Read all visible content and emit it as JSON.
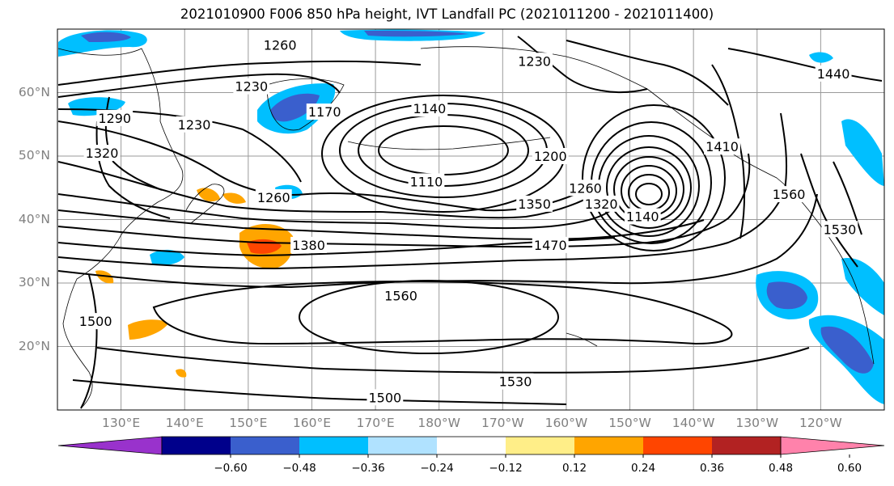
{
  "title": "2021010900 F006 850 hPa height, IVT Landfall PC (2021011200 - 2021011400)",
  "map": {
    "projection": "equirectangular",
    "lon_range_east": [
      120,
      250
    ],
    "lat_range": [
      10,
      70
    ],
    "grid": true,
    "lat_ticks": [
      {
        "value": 20,
        "label": "20°N"
      },
      {
        "value": 30,
        "label": "30°N"
      },
      {
        "value": 40,
        "label": "40°N"
      },
      {
        "value": 50,
        "label": "50°N"
      },
      {
        "value": 60,
        "label": "60°N"
      }
    ],
    "lon_ticks": [
      {
        "value": 130,
        "label": "130°E"
      },
      {
        "value": 140,
        "label": "140°E"
      },
      {
        "value": 150,
        "label": "150°E"
      },
      {
        "value": 160,
        "label": "160°E"
      },
      {
        "value": 170,
        "label": "170°E"
      },
      {
        "value": 180,
        "label": "180°W"
      },
      {
        "value": 190,
        "label": "170°W"
      },
      {
        "value": 200,
        "label": "160°W"
      },
      {
        "value": 210,
        "label": "150°W"
      },
      {
        "value": 220,
        "label": "140°W"
      },
      {
        "value": 230,
        "label": "130°W"
      },
      {
        "value": 240,
        "label": "120°W"
      }
    ]
  },
  "contour_labels": [
    {
      "text": "1260",
      "lon": 155,
      "lat": 67.5
    },
    {
      "text": "1230",
      "lon": 150.5,
      "lat": 61
    },
    {
      "text": "1290",
      "lon": 129,
      "lat": 56
    },
    {
      "text": "1320",
      "lon": 127,
      "lat": 50.5
    },
    {
      "text": "1230",
      "lon": 141.5,
      "lat": 55
    },
    {
      "text": "1170",
      "lon": 162,
      "lat": 57
    },
    {
      "text": "1140",
      "lon": 178.5,
      "lat": 57.5
    },
    {
      "text": "1230",
      "lon": 195,
      "lat": 65
    },
    {
      "text": "1200",
      "lon": 197.5,
      "lat": 50
    },
    {
      "text": "1110",
      "lon": 178,
      "lat": 46
    },
    {
      "text": "1260",
      "lon": 203,
      "lat": 45
    },
    {
      "text": "1260",
      "lon": 154,
      "lat": 43.5
    },
    {
      "text": "1350",
      "lon": 195,
      "lat": 42.5
    },
    {
      "text": "1320",
      "lon": 205.5,
      "lat": 42.5
    },
    {
      "text": "1140",
      "lon": 212,
      "lat": 40.5
    },
    {
      "text": "1410",
      "lon": 224.5,
      "lat": 51.5
    },
    {
      "text": "1440",
      "lon": 242,
      "lat": 63
    },
    {
      "text": "1560",
      "lon": 235,
      "lat": 44
    },
    {
      "text": "1530",
      "lon": 243,
      "lat": 38.5
    },
    {
      "text": "1380",
      "lon": 159.5,
      "lat": 36
    },
    {
      "text": "1470",
      "lon": 197.5,
      "lat": 36
    },
    {
      "text": "1560",
      "lon": 174,
      "lat": 28
    },
    {
      "text": "1500",
      "lon": 126,
      "lat": 24
    },
    {
      "text": "1530",
      "lon": 192,
      "lat": 14.5
    },
    {
      "text": "1500",
      "lon": 171.5,
      "lat": 12
    }
  ],
  "colorbar": {
    "extend": "both",
    "colors": [
      "#9932cc",
      "#00008b",
      "#3a5fcd",
      "#00bfff",
      "#b0e2ff",
      "#ffffff",
      "#ffee88",
      "#ffa500",
      "#ff4500",
      "#b22222",
      "#ff82ab"
    ],
    "tick_labels": [
      "−0.60",
      "−0.48",
      "−0.36",
      "−0.24",
      "−0.12",
      "0.12",
      "0.24",
      "0.36",
      "0.48",
      "0.60"
    ]
  },
  "shading_colors": {
    "deep": "#3a5fcd",
    "mid": "#00bfff",
    "warm": "#ffa500",
    "hot": "#ff4500"
  }
}
